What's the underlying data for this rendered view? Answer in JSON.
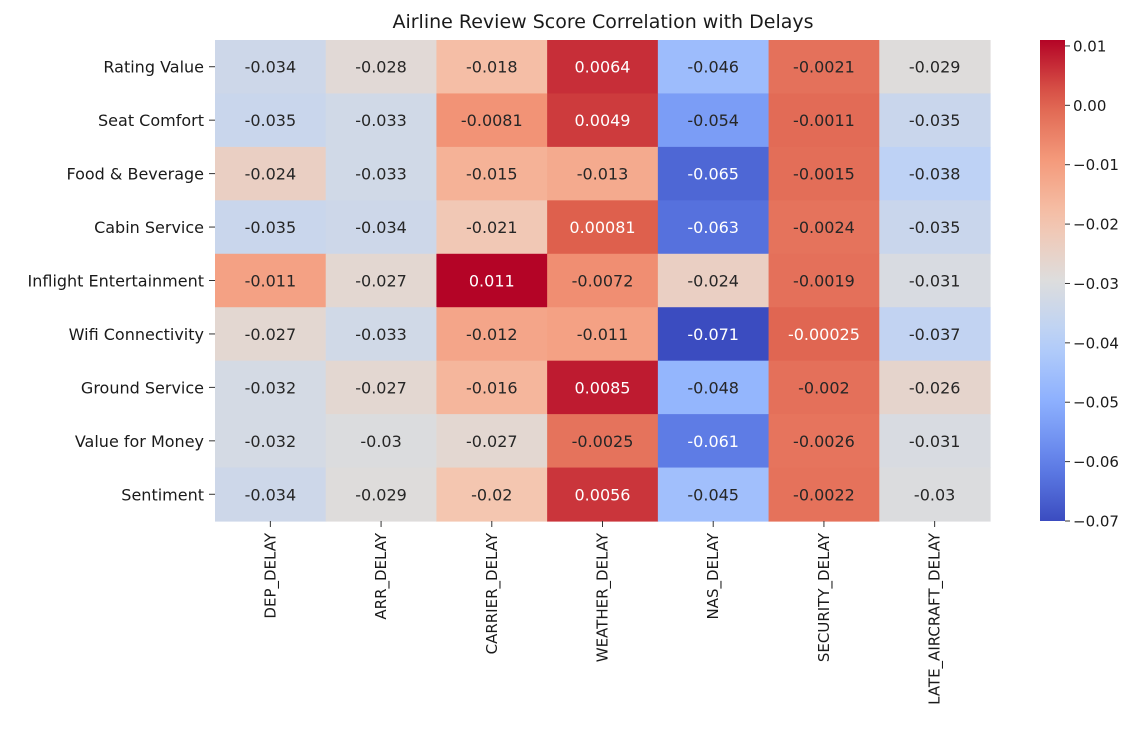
{
  "chart_data": {
    "type": "heatmap",
    "title": "Airline Review Score Correlation with Delays",
    "xlabel": "",
    "ylabel": "",
    "colormap": "coolwarm",
    "vmin": -0.07,
    "vmax": 0.011,
    "colorbar_ticks": [
      0.01,
      0.0,
      -0.01,
      -0.02,
      -0.03,
      -0.04,
      -0.05,
      -0.06,
      -0.07
    ],
    "colorbar_tick_labels": [
      "0.01",
      "0.00",
      "−0.01",
      "−0.02",
      "−0.03",
      "−0.04",
      "−0.05",
      "−0.06",
      "−0.07"
    ],
    "x_categories": [
      "DEP_DELAY",
      "ARR_DELAY",
      "CARRIER_DELAY",
      "WEATHER_DELAY",
      "NAS_DELAY",
      "SECURITY_DELAY",
      "LATE_AIRCRAFT_DELAY"
    ],
    "y_categories": [
      "Rating Value",
      "Seat Comfort",
      "Food & Beverage",
      "Cabin Service",
      "Inflight Entertainment",
      "Wifi Connectivity",
      "Ground Service",
      "Value for Money",
      "Sentiment"
    ],
    "values": [
      [
        -0.034,
        -0.028,
        -0.018,
        0.0064,
        -0.046,
        -0.0021,
        -0.029
      ],
      [
        -0.035,
        -0.033,
        -0.0081,
        0.0049,
        -0.054,
        -0.0011,
        -0.035
      ],
      [
        -0.024,
        -0.033,
        -0.015,
        -0.013,
        -0.065,
        -0.0015,
        -0.038
      ],
      [
        -0.035,
        -0.034,
        -0.021,
        0.00081,
        -0.063,
        -0.0024,
        -0.035
      ],
      [
        -0.011,
        -0.027,
        0.011,
        -0.0072,
        -0.024,
        -0.0019,
        -0.031
      ],
      [
        -0.027,
        -0.033,
        -0.012,
        -0.011,
        -0.071,
        -0.00025,
        -0.037
      ],
      [
        -0.032,
        -0.027,
        -0.016,
        0.0085,
        -0.048,
        -0.002,
        -0.026
      ],
      [
        -0.032,
        -0.03,
        -0.027,
        -0.0025,
        -0.061,
        -0.0026,
        -0.031
      ],
      [
        -0.034,
        -0.029,
        -0.02,
        0.0056,
        -0.045,
        -0.0022,
        -0.03
      ]
    ],
    "annotations": [
      [
        "-0.034",
        "-0.028",
        "-0.018",
        "0.0064",
        "-0.046",
        "-0.0021",
        "-0.029"
      ],
      [
        "-0.035",
        "-0.033",
        "-0.0081",
        "0.0049",
        "-0.054",
        "-0.0011",
        "-0.035"
      ],
      [
        "-0.024",
        "-0.033",
        "-0.015",
        "-0.013",
        "-0.065",
        "-0.0015",
        "-0.038"
      ],
      [
        "-0.035",
        "-0.034",
        "-0.021",
        "0.00081",
        "-0.063",
        "-0.0024",
        "-0.035"
      ],
      [
        "-0.011",
        "-0.027",
        "0.011",
        "-0.0072",
        "-0.024",
        "-0.0019",
        "-0.031"
      ],
      [
        "-0.027",
        "-0.033",
        "-0.012",
        "-0.011",
        "-0.071",
        "-0.00025",
        "-0.037"
      ],
      [
        "-0.032",
        "-0.027",
        "-0.016",
        "0.0085",
        "-0.048",
        "-0.002",
        "-0.026"
      ],
      [
        "-0.032",
        "-0.03",
        "-0.027",
        "-0.0025",
        "-0.061",
        "-0.0026",
        "-0.031"
      ],
      [
        "-0.034",
        "-0.029",
        "-0.02",
        "0.0056",
        "-0.045",
        "-0.0022",
        "-0.03"
      ]
    ]
  }
}
